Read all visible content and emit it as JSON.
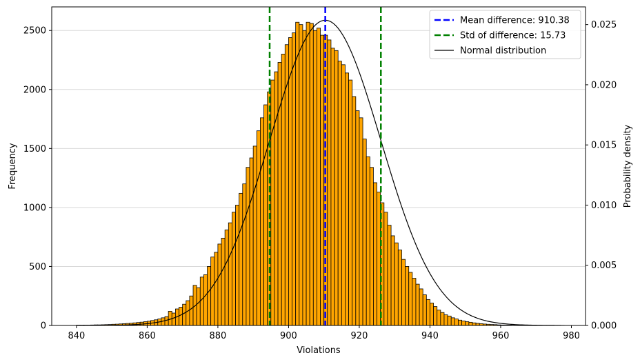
{
  "chart_data": {
    "type": "bar",
    "xlabel": "Violations",
    "ylabel": "Frequency",
    "y2label": "Probability density",
    "xlim": [
      833,
      984
    ],
    "ylim": [
      0,
      2700
    ],
    "y2lim": [
      0,
      0.02647
    ],
    "x_ticks": [
      840,
      860,
      880,
      900,
      920,
      940,
      960,
      980
    ],
    "y_ticks": [
      0,
      500,
      1000,
      1500,
      2000,
      2500
    ],
    "y2_ticks": [
      0.0,
      0.005,
      0.01,
      0.015,
      0.02,
      0.025
    ],
    "grid": "horizontal",
    "legend_position": "top-right",
    "bar_color": "#FFA500",
    "bar_edge_color": "#000000",
    "bin_start": 840,
    "bin_width": 1,
    "bin_values": [
      2,
      2,
      3,
      3,
      4,
      5,
      5,
      6,
      7,
      8,
      10,
      11,
      13,
      15,
      17,
      19,
      22,
      25,
      28,
      32,
      36,
      42,
      48,
      55,
      65,
      75,
      120,
      105,
      140,
      155,
      180,
      210,
      250,
      340,
      320,
      410,
      430,
      500,
      580,
      620,
      690,
      740,
      810,
      870,
      960,
      1020,
      1120,
      1200,
      1340,
      1420,
      1520,
      1650,
      1760,
      1870,
      1980,
      2080,
      2150,
      2230,
      2300,
      2380,
      2440,
      2480,
      2570,
      2550,
      2500,
      2570,
      2560,
      2500,
      2520,
      2460,
      2460,
      2420,
      2350,
      2330,
      2240,
      2210,
      2140,
      2080,
      1940,
      1820,
      1760,
      1580,
      1430,
      1340,
      1210,
      1130,
      1040,
      960,
      850,
      760,
      700,
      640,
      560,
      500,
      450,
      400,
      350,
      310,
      260,
      220,
      190,
      160,
      130,
      110,
      90,
      80,
      65,
      55,
      45,
      38,
      32,
      27,
      22,
      18,
      15,
      12,
      10,
      8,
      7,
      5,
      4,
      3,
      3,
      2,
      2,
      1,
      1,
      1,
      1,
      1,
      1,
      1,
      1,
      1,
      1,
      1,
      1,
      1
    ],
    "series": [
      {
        "name": "Mean difference: 910.38",
        "kind": "vline",
        "x": 910.38,
        "color": "#0000FF",
        "style": "dashed"
      },
      {
        "name": "Std of difference: 15.73",
        "kind": "vlines",
        "x": [
          894.65,
          926.11
        ],
        "color": "#008000",
        "style": "dashed"
      },
      {
        "name": "Normal distribution",
        "kind": "pdf_curve",
        "mean": 910.38,
        "std": 15.73,
        "color": "#000000",
        "style": "solid"
      }
    ]
  }
}
